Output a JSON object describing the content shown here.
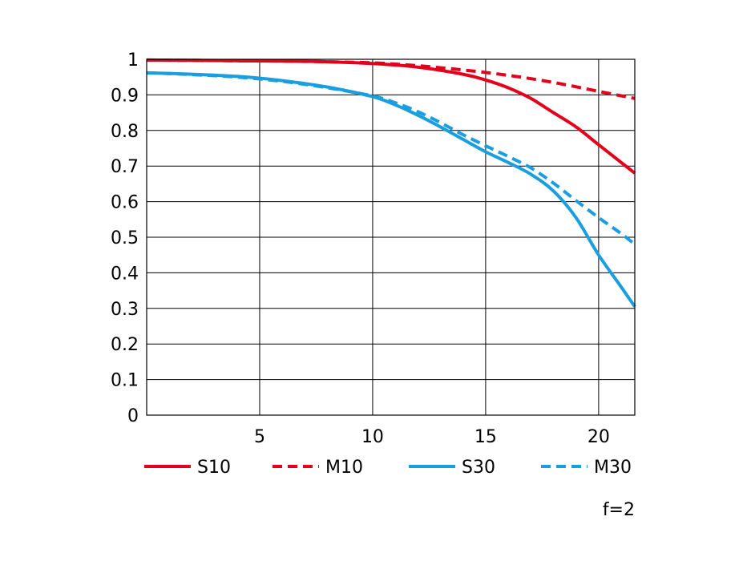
{
  "chart_data": {
    "type": "line",
    "note": "f=2",
    "xlim": [
      0,
      21.6
    ],
    "ylim": [
      0,
      1
    ],
    "x_ticks": [
      5,
      10,
      15,
      20
    ],
    "x_tick_labels": [
      "5",
      "10",
      "15",
      "20"
    ],
    "y_ticks": [
      0,
      0.1,
      0.2,
      0.3,
      0.4,
      0.5,
      0.6,
      0.7,
      0.8,
      0.9,
      1
    ],
    "y_tick_labels": [
      "0",
      "0.1",
      "0.2",
      "0.3",
      "0.4",
      "0.5",
      "0.6",
      "0.7",
      "0.8",
      "0.9",
      "1"
    ],
    "grid": true,
    "legend_position": "bottom",
    "series": [
      {
        "name": "S10",
        "color": "#e3001b",
        "style": "solid",
        "x": [
          0,
          2,
          4,
          6,
          8,
          10,
          12,
          14,
          15,
          16,
          17,
          18,
          19,
          20,
          21,
          21.6
        ],
        "y": [
          0.998,
          0.997,
          0.996,
          0.995,
          0.993,
          0.988,
          0.978,
          0.958,
          0.942,
          0.92,
          0.89,
          0.85,
          0.81,
          0.76,
          0.71,
          0.68
        ]
      },
      {
        "name": "M10",
        "color": "#e3001b",
        "style": "dashed",
        "x": [
          0,
          2,
          4,
          6,
          8,
          10,
          12,
          14,
          16,
          18,
          20,
          21.6
        ],
        "y": [
          0.998,
          0.997,
          0.996,
          0.995,
          0.993,
          0.99,
          0.982,
          0.97,
          0.955,
          0.935,
          0.91,
          0.89
        ]
      },
      {
        "name": "S30",
        "color": "#1a9ee0",
        "style": "solid",
        "x": [
          0,
          2,
          4,
          6,
          8,
          10,
          11,
          12,
          13,
          14,
          15,
          16,
          17,
          18,
          19,
          20,
          21,
          21.6
        ],
        "y": [
          0.962,
          0.958,
          0.952,
          0.94,
          0.922,
          0.895,
          0.872,
          0.843,
          0.81,
          0.775,
          0.74,
          0.71,
          0.677,
          0.63,
          0.555,
          0.45,
          0.36,
          0.305
        ]
      },
      {
        "name": "M30",
        "color": "#1a9ee0",
        "style": "dashed",
        "x": [
          0,
          2,
          4,
          6,
          8,
          10,
          11,
          12,
          13,
          14,
          15,
          16,
          17,
          18,
          19,
          20,
          21,
          21.6
        ],
        "y": [
          0.962,
          0.957,
          0.95,
          0.938,
          0.92,
          0.897,
          0.878,
          0.853,
          0.822,
          0.788,
          0.757,
          0.727,
          0.695,
          0.652,
          0.603,
          0.555,
          0.51,
          0.48
        ]
      }
    ]
  }
}
